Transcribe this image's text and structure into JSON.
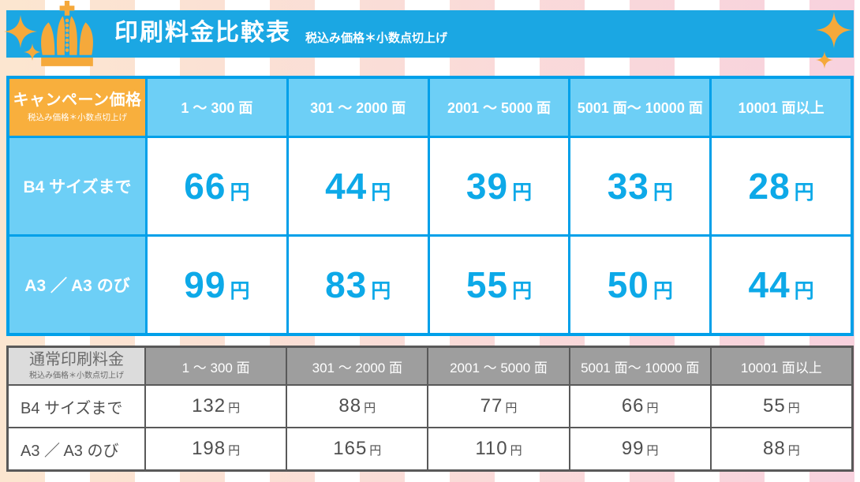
{
  "header": {
    "title": "印刷料金比較表",
    "subtitle": "税込み価格＊小数点切上げ"
  },
  "decorations": {
    "icons": [
      "crown-icon",
      "sparkle-icon-large-left",
      "sparkle-icon-small-left",
      "sparkle-icon-large-right",
      "sparkle-icon-small-right"
    ]
  },
  "colors": {
    "banner_blue": "#1BA7E3",
    "table_border_blue": "#00A0E9",
    "cell_light_blue": "#6DCFF6",
    "corner_orange": "#F8AF3D",
    "price_blue": "#0DA9E8",
    "crown_orange": "#F5A93B",
    "gray_border": "#595959",
    "gray_header_bg": "#9E9E9E",
    "gray_corner_bg": "#DCDCDC",
    "stripe_peach": "#FCE6D0",
    "stripe_pink": "#F8D2DE"
  },
  "campaign_table": {
    "corner": {
      "title": "キャンペーン価格",
      "subtitle": "税込み価格＊小数点切上げ"
    },
    "columns": [
      "1 ～ 300 面",
      "301 ～ 2000 面",
      "2001 ～ 5000 面",
      "5001 面～ 10000 面",
      "10001 面以上"
    ],
    "unit": "円",
    "rows": [
      {
        "label": "B4 サイズまで",
        "prices": [
          "66",
          "44",
          "39",
          "33",
          "28"
        ]
      },
      {
        "label": "A3 ／ A3 のび",
        "prices": [
          "99",
          "83",
          "55",
          "50",
          "44"
        ]
      }
    ]
  },
  "regular_table": {
    "corner": {
      "title": "通常印刷料金",
      "subtitle": "税込み価格＊小数点切上げ"
    },
    "columns": [
      "1 ～ 300 面",
      "301 ～ 2000 面",
      "2001 ～ 5000 面",
      "5001 面～ 10000 面",
      "10001 面以上"
    ],
    "unit": "円",
    "rows": [
      {
        "label": "B4 サイズまで",
        "prices": [
          "132",
          "88",
          "77",
          "66",
          "55"
        ]
      },
      {
        "label": "A3 ／ A3 のび",
        "prices": [
          "198",
          "165",
          "110",
          "99",
          "88"
        ]
      }
    ]
  }
}
